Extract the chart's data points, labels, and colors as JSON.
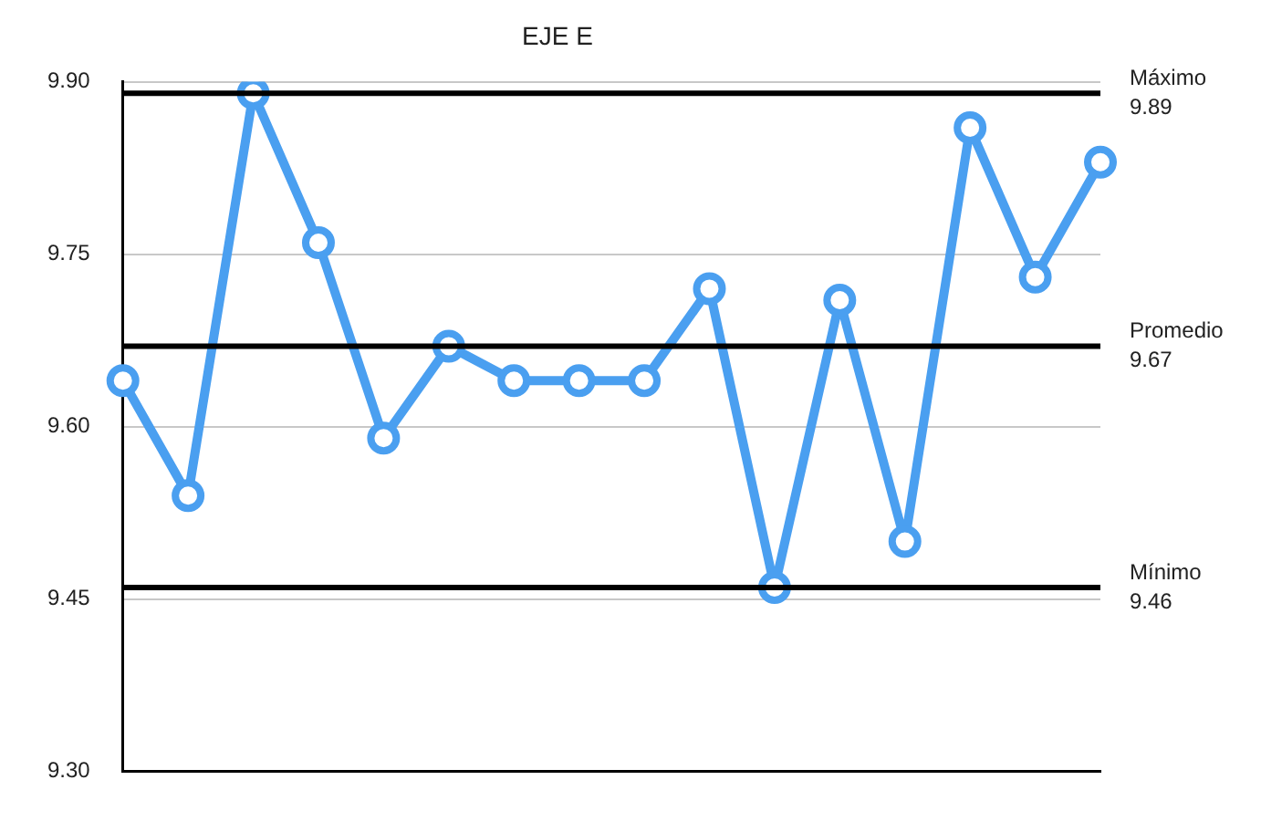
{
  "chart_data": {
    "type": "line",
    "title": "EJE E",
    "categories": [
      null,
      null,
      null,
      null,
      null,
      null,
      null,
      null,
      null,
      null,
      null,
      null,
      null,
      null,
      null,
      null
    ],
    "series": [
      {
        "color": "#4a9ff0",
        "values": [
          9.64,
          9.54,
          9.89,
          9.76,
          9.59,
          9.67,
          9.64,
          9.64,
          9.64,
          9.72,
          9.46,
          9.71,
          9.5,
          9.86,
          9.73,
          9.83
        ]
      }
    ],
    "ylim": [
      9.3,
      9.9
    ],
    "yticks": [
      {
        "value": 9.3,
        "label": "9.30"
      },
      {
        "value": 9.45,
        "label": "9.45"
      },
      {
        "value": 9.6,
        "label": "9.60"
      },
      {
        "value": 9.75,
        "label": "9.75"
      },
      {
        "value": 9.9,
        "label": "9.90"
      }
    ],
    "grid": "y",
    "marker": "circle",
    "line_style": "solid",
    "legend": false,
    "ref_lines": [
      {
        "axis": "y",
        "value": 9.89,
        "label": "Máximo\n9.89",
        "color": "#000000"
      },
      {
        "axis": "y",
        "value": 9.67,
        "label": "Promedio\n9.67",
        "color": "#000000"
      },
      {
        "axis": "y",
        "value": 9.46,
        "label": "Mínimo\n9.46",
        "color": "#000000"
      }
    ]
  }
}
